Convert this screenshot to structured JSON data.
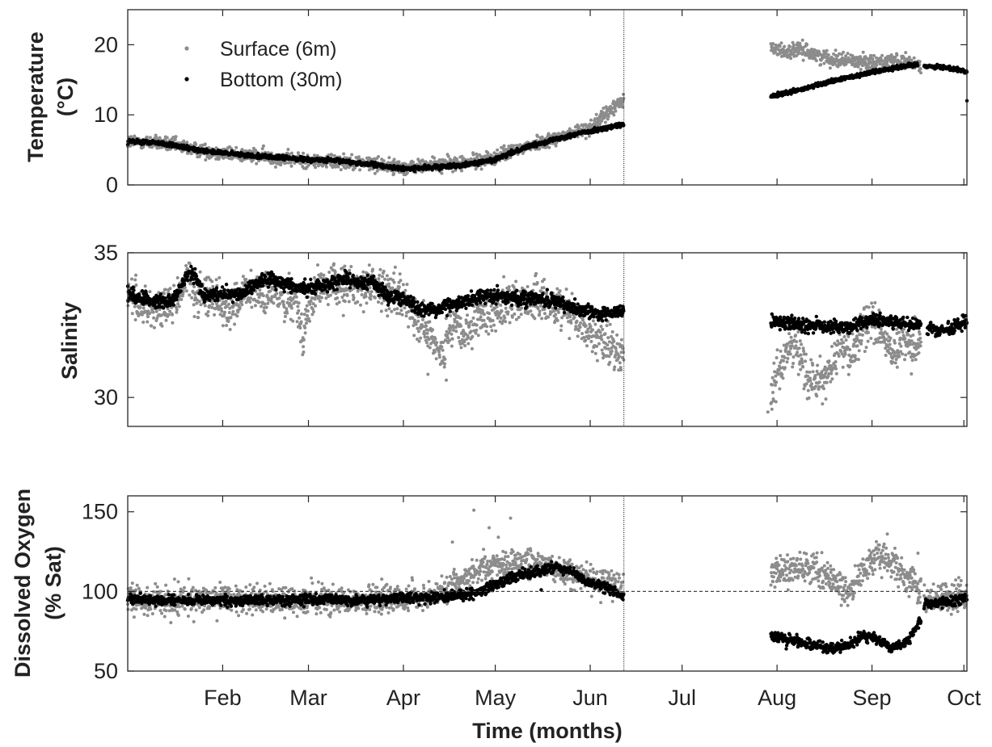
{
  "chart_data": [
    {
      "type": "scatter",
      "panel": "temperature",
      "ylabel": [
        "Temperature",
        "(°C)"
      ],
      "ylim": [
        0,
        25
      ],
      "yticks": [
        0,
        10,
        20
      ],
      "ytick_labels": [
        "0",
        "10",
        "20"
      ],
      "x_range_days": [
        0,
        274
      ],
      "legend": {
        "placement": "top-left",
        "entries": [
          "Surface (6m)",
          "Bottom (30m)"
        ]
      },
      "series": [
        {
          "name": "Surface (6m)",
          "color": "#8c8c8c",
          "segments": [
            {
              "x": [
                0,
                10,
                20,
                30,
                40,
                50,
                60,
                70,
                80,
                90,
                100,
                110,
                120,
                130,
                140,
                150,
                155,
                160,
                162
              ],
              "y": [
                6.2,
                6.0,
                5.2,
                4.6,
                4.2,
                3.8,
                3.4,
                3.4,
                3.0,
                2.4,
                2.9,
                3.1,
                3.9,
                5.5,
                6.7,
                8.0,
                9.6,
                11.5,
                12.5
              ]
            },
            {
              "x": [
                210,
                215,
                220,
                225,
                230,
                240,
                250,
                255,
                259
              ],
              "y": [
                19.5,
                19.0,
                19.3,
                18.5,
                18.0,
                17.6,
                17.6,
                17.4,
                17.2
              ]
            }
          ],
          "noise": 0.5
        },
        {
          "name": "Bottom (30m)",
          "color": "#000000",
          "segments": [
            {
              "x": [
                0,
                10,
                20,
                30,
                40,
                50,
                60,
                70,
                80,
                90,
                100,
                110,
                120,
                130,
                140,
                150,
                162
              ],
              "y": [
                6.2,
                6.0,
                5.2,
                4.6,
                4.2,
                3.9,
                3.6,
                3.4,
                2.9,
                2.3,
                2.5,
                2.9,
                3.6,
                5.4,
                6.6,
                7.6,
                8.6
              ]
            },
            {
              "x": [
                210,
                220,
                230,
                240,
                250,
                258
              ],
              "y": [
                12.6,
                13.6,
                14.8,
                15.8,
                16.7,
                17.2
              ]
            },
            {
              "x": [
                260,
                266,
                272,
                274
              ],
              "y": [
                17.0,
                16.8,
                16.4,
                16.1
              ]
            }
          ],
          "extra_points": [
            [
              274,
              12.0
            ]
          ],
          "noise": 0.15
        }
      ]
    },
    {
      "type": "scatter",
      "panel": "salinity",
      "ylabel": [
        "Salinity"
      ],
      "ylim": [
        29,
        35
      ],
      "yticks": [
        30,
        35
      ],
      "ytick_labels": [
        "30",
        "35"
      ],
      "x_range_days": [
        0,
        274
      ],
      "series": [
        {
          "name": "Surface (6m)",
          "color": "#8c8c8c",
          "segments": [
            {
              "x": [
                0,
                5,
                10,
                15,
                20,
                23,
                26,
                30,
                33,
                37,
                40,
                45,
                50,
                55,
                57,
                60,
                63,
                66,
                70,
                80,
                90,
                95,
                97,
                100,
                103,
                105,
                108,
                110,
                115,
                120,
                125,
                130,
                135,
                140,
                145,
                150,
                155,
                160,
                162
              ],
              "y": [
                33.6,
                33.2,
                33.0,
                33.2,
                34.2,
                33.3,
                33.6,
                33.4,
                33.0,
                33.4,
                33.7,
                33.5,
                33.6,
                33.4,
                32.2,
                33.4,
                33.8,
                33.9,
                33.8,
                33.9,
                33.4,
                32.8,
                32.3,
                32.0,
                31.5,
                32.2,
                32.5,
                32.0,
                32.8,
                33.0,
                33.3,
                33.4,
                33.3,
                33.2,
                33.0,
                32.3,
                32.0,
                31.6,
                31.4
              ]
            },
            {
              "x": [
                210,
                212,
                215,
                218,
                220,
                223,
                226,
                230,
                233,
                236,
                240,
                243,
                246,
                250,
                253,
                256,
                259
              ],
              "y": [
                29.9,
                30.9,
                31.4,
                32.0,
                31.3,
                30.5,
                30.6,
                31.0,
                32.0,
                31.3,
                32.3,
                32.7,
                32.3,
                31.3,
                32.0,
                31.7,
                32.0
              ]
            }
          ],
          "extra_points": [
            [
              98,
              30.8
            ],
            [
              104,
              30.6
            ],
            [
              209,
              29.5
            ]
          ],
          "noise": 0.35
        },
        {
          "name": "Bottom (30m)",
          "color": "#000000",
          "segments": [
            {
              "x": [
                0,
                5,
                10,
                15,
                20,
                22,
                25,
                30,
                35,
                40,
                45,
                50,
                55,
                60,
                65,
                70,
                75,
                80,
                85,
                90,
                95,
                100,
                105,
                110,
                115,
                120,
                125,
                130,
                135,
                140,
                145,
                150,
                155,
                162
              ],
              "y": [
                33.6,
                33.4,
                33.3,
                33.4,
                34.3,
                34.2,
                33.5,
                33.6,
                33.5,
                33.8,
                34.1,
                34.0,
                33.8,
                33.8,
                33.9,
                34.1,
                34.0,
                34.0,
                33.5,
                33.4,
                33.1,
                33.0,
                33.2,
                33.3,
                33.5,
                33.5,
                33.5,
                33.4,
                33.4,
                33.3,
                33.1,
                33.0,
                32.9,
                32.9
              ]
            },
            {
              "x": [
                210,
                215,
                220,
                225,
                230,
                235,
                240,
                245,
                250,
                255,
                259
              ],
              "y": [
                32.6,
                32.6,
                32.5,
                32.5,
                32.4,
                32.4,
                32.6,
                32.7,
                32.6,
                32.5,
                32.5
              ]
            },
            {
              "x": [
                261,
                265,
                270,
                274
              ],
              "y": [
                32.4,
                32.3,
                32.4,
                32.7
              ]
            }
          ],
          "extra_points": [
            [
              146,
              33.4
            ],
            [
              258,
              32.6
            ]
          ],
          "noise": 0.12
        }
      ]
    },
    {
      "type": "scatter",
      "panel": "dissolved_oxygen",
      "ylabel": [
        "Dissolved Oxygen",
        "(% Sat)"
      ],
      "ylim": [
        50,
        160
      ],
      "yticks": [
        50,
        100,
        150
      ],
      "ytick_labels": [
        "50",
        "100",
        "150"
      ],
      "reference_line": {
        "y": 100,
        "style": "dashed"
      },
      "x_range_days": [
        0,
        274
      ],
      "xlabel": "Time (months)",
      "xtick_days": [
        31,
        59,
        90,
        120,
        151,
        181,
        212,
        243,
        273
      ],
      "xtick_labels": [
        "Feb",
        "Mar",
        "Apr",
        "May",
        "Jun",
        "Jul",
        "Aug",
        "Sep",
        "Oct"
      ],
      "divider_day": 162,
      "series": [
        {
          "name": "Surface (6m)",
          "color": "#8c8c8c",
          "segments": [
            {
              "x": [
                0,
                20,
                40,
                60,
                80,
                90,
                95,
                100,
                105,
                110,
                115,
                120,
                125,
                130,
                135,
                140,
                145,
                150,
                155,
                160,
                162
              ],
              "y": [
                95,
                94.5,
                94.5,
                94.8,
                94.5,
                95.5,
                96,
                98,
                102,
                108,
                113,
                115,
                118,
                117,
                118,
                114,
                110,
                108,
                106,
                104,
                103
              ]
            },
            {
              "x": [
                210,
                215,
                220,
                225,
                230,
                235,
                240,
                245,
                250,
                255,
                259
              ],
              "y": [
                112,
                114,
                116,
                113,
                107,
                101,
                112,
                121,
                118,
                106,
                104
              ]
            },
            {
              "x": [
                260,
                265,
                270,
                274
              ],
              "y": [
                96,
                96,
                97,
                97
              ]
            }
          ],
          "extra_points": [
            [
              113,
              151
            ],
            [
              125,
              146
            ],
            [
              118,
              140
            ],
            [
              121,
              134
            ],
            [
              106,
              131
            ],
            [
              248,
              136
            ],
            [
              258,
              124
            ]
          ],
          "noise": 4.5
        },
        {
          "name": "Bottom (30m)",
          "color": "#000000",
          "segments": [
            {
              "x": [
                0,
                20,
                40,
                60,
                80,
                90,
                95,
                100,
                105,
                110,
                115,
                120,
                125,
                130,
                135,
                140,
                145,
                150,
                155,
                160,
                162
              ],
              "y": [
                95,
                94.5,
                94.5,
                95,
                94.5,
                95.5,
                96,
                96,
                97,
                98,
                100,
                104,
                108,
                111,
                113,
                115,
                112,
                106,
                104,
                99,
                96
              ]
            },
            {
              "x": [
                210,
                215,
                220,
                225,
                230,
                235,
                240,
                245,
                250,
                255,
                259
              ],
              "y": [
                72,
                70,
                68,
                66,
                64,
                66,
                72,
                70,
                64,
                70,
                82
              ]
            },
            {
              "x": [
                260,
                265,
                270,
                274
              ],
              "y": [
                92,
                93,
                94,
                96
              ]
            }
          ],
          "extra_points": [
            [
              135,
              101
            ],
            [
              215,
              64
            ]
          ],
          "noise": 1.6
        }
      ]
    }
  ]
}
